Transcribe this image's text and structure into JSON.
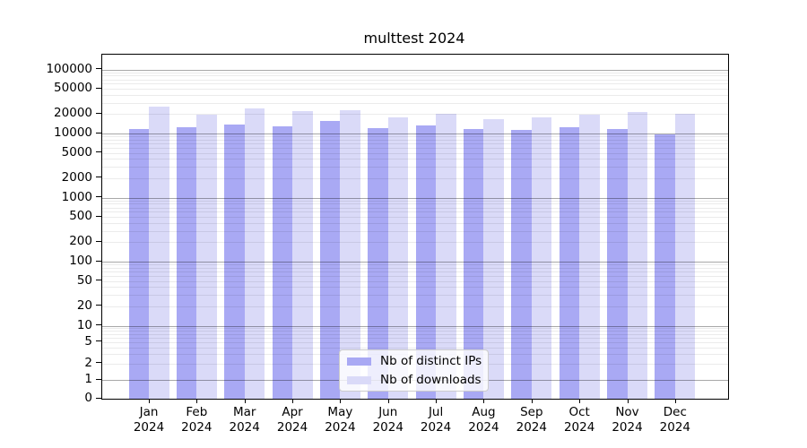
{
  "chart_data": {
    "type": "bar",
    "title": "multtest 2024",
    "yscale": "log",
    "ylim": [
      0,
      150000
    ],
    "grid": true,
    "legend_position": "lower center",
    "categories": [
      "Jan",
      "Feb",
      "Mar",
      "Apr",
      "May",
      "Jun",
      "Jul",
      "Aug",
      "Sep",
      "Oct",
      "Nov",
      "Dec"
    ],
    "x_year": "2024",
    "series": [
      {
        "name": "Nb of distinct IPs",
        "color": "#a9a9f4",
        "values": [
          11900,
          12500,
          14000,
          13000,
          15500,
          12000,
          13400,
          11800,
          11500,
          12400,
          11800,
          9800
        ]
      },
      {
        "name": "Nb of downloads",
        "color": "#dadaf8",
        "values": [
          26500,
          19700,
          25000,
          22500,
          23000,
          18000,
          20300,
          17000,
          17600,
          19800,
          22000,
          20000
        ]
      }
    ],
    "y_ticks": [
      {
        "label": "100000",
        "value": 100000
      },
      {
        "label": "50000",
        "value": 50000
      },
      {
        "label": "20000",
        "value": 20000
      },
      {
        "label": "10000",
        "value": 10000
      },
      {
        "label": "5000",
        "value": 5000
      },
      {
        "label": "2000",
        "value": 2000
      },
      {
        "label": "1000",
        "value": 1000
      },
      {
        "label": "500",
        "value": 500
      },
      {
        "label": "200",
        "value": 200
      },
      {
        "label": "100",
        "value": 100
      },
      {
        "label": "50",
        "value": 50
      },
      {
        "label": "20",
        "value": 20
      },
      {
        "label": "10",
        "value": 10
      },
      {
        "label": "5",
        "value": 5
      },
      {
        "label": "2",
        "value": 2
      },
      {
        "label": "1",
        "value": 1
      },
      {
        "label": "0",
        "value": 0
      }
    ]
  }
}
